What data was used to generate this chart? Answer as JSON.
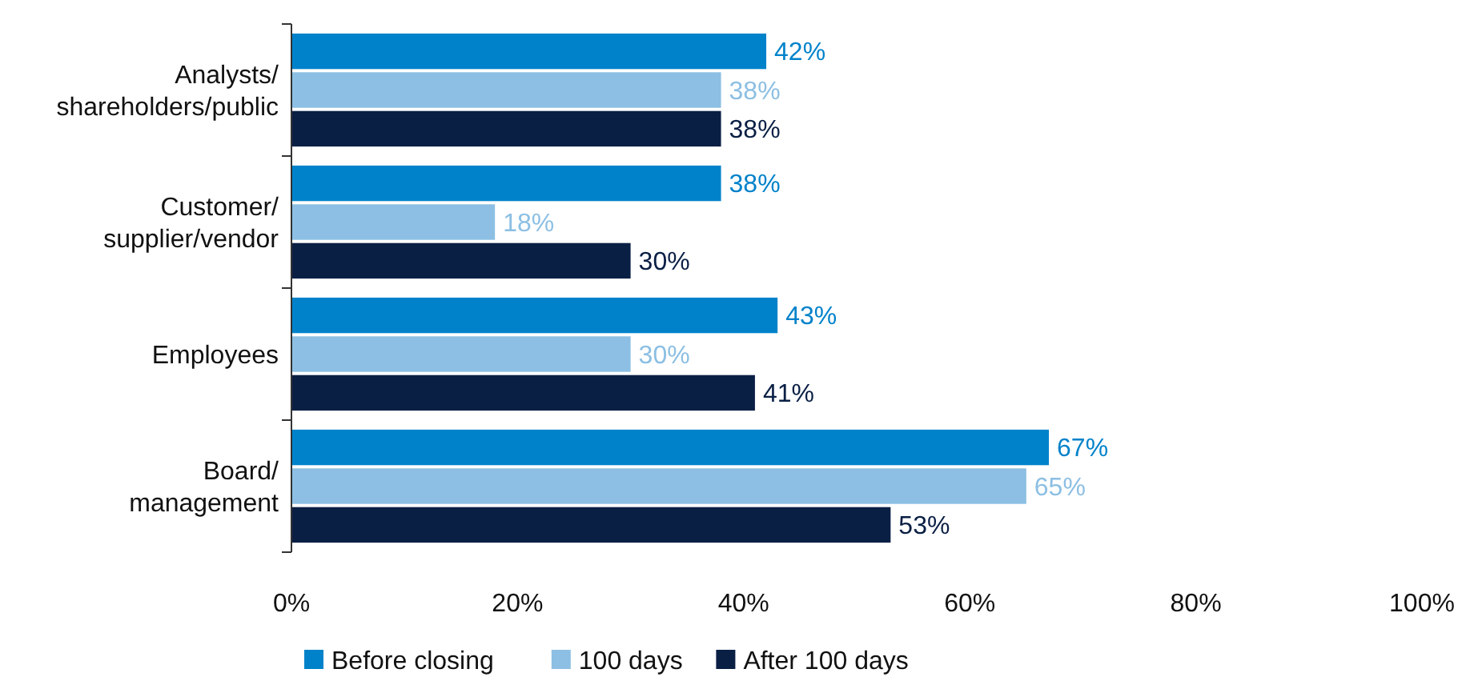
{
  "chart_data": {
    "type": "bar",
    "orientation": "horizontal",
    "categories": [
      "Analysts/ shareholders/public",
      "Customer/ supplier/vendor",
      "Employees",
      "Board/ management"
    ],
    "series": [
      {
        "name": "Before closing",
        "color": "#0082ca",
        "values": [
          42,
          38,
          43,
          67
        ],
        "value_labels": [
          "42%",
          "38%",
          "43%",
          "67%"
        ]
      },
      {
        "name": "100 days",
        "color": "#8cbfe3",
        "values": [
          38,
          18,
          30,
          65
        ],
        "value_labels": [
          "38%",
          "18%",
          "30%",
          "65%"
        ]
      },
      {
        "name": "After 100 days",
        "color": "#0a1f44",
        "values": [
          38,
          30,
          41,
          53
        ],
        "value_labels": [
          "38%",
          "30%",
          "41%",
          "53%"
        ]
      }
    ],
    "xlim": [
      0,
      100
    ],
    "xticks": [
      {
        "value": 0,
        "label": "0%"
      },
      {
        "value": 20,
        "label": "20%"
      },
      {
        "value": 40,
        "label": "40%"
      },
      {
        "value": 60,
        "label": "60%"
      },
      {
        "value": 80,
        "label": "80%"
      },
      {
        "value": 100,
        "label": "100%"
      }
    ],
    "grid": false,
    "legend": "bottom"
  }
}
